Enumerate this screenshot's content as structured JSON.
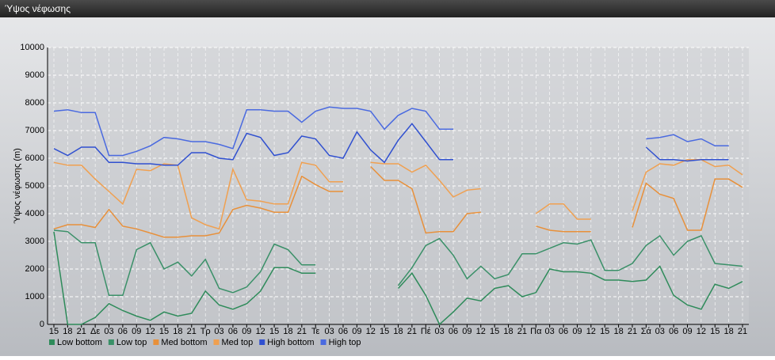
{
  "window_title": "Ύψος νέφωσης",
  "chart_data": {
    "type": "line",
    "y_label": "Ύψος νέφωσης (m)",
    "categories": [
      "15",
      "18",
      "21",
      "Δε",
      "03",
      "06",
      "09",
      "12",
      "15",
      "18",
      "21",
      "Τρ",
      "03",
      "06",
      "09",
      "12",
      "15",
      "18",
      "21",
      "Τε",
      "03",
      "06",
      "09",
      "12",
      "15",
      "18",
      "21",
      "Πέ",
      "03",
      "06",
      "09",
      "12",
      "15",
      "18",
      "21",
      "Πα",
      "03",
      "06",
      "09",
      "12",
      "15",
      "18",
      "21",
      "Σά",
      "03",
      "06",
      "09",
      "12",
      "15",
      "18",
      "21"
    ],
    "ylim": [
      0,
      10000
    ],
    "yticks": [
      0,
      1000,
      2000,
      3000,
      4000,
      5000,
      6000,
      7000,
      8000,
      9000,
      10000
    ],
    "grid": true,
    "series": [
      {
        "name": "Low bottom",
        "color": "#2e8b5a",
        "values": [
          3350,
          0,
          0,
          250,
          750,
          500,
          300,
          150,
          450,
          300,
          400,
          1200,
          700,
          550,
          750,
          1200,
          2050,
          2050,
          1850,
          1850,
          null,
          null,
          null,
          null,
          null,
          1300,
          1850,
          1050,
          0,
          450,
          950,
          850,
          1300,
          1400,
          1000,
          1150,
          2000,
          1900,
          1900,
          1850,
          1600,
          1600,
          1550,
          1600,
          2100,
          1050,
          700,
          550,
          1450,
          1300,
          1550
        ]
      },
      {
        "name": "Low top",
        "color": "#3a9068",
        "values": [
          3400,
          3350,
          2950,
          2950,
          1050,
          1050,
          2700,
          2950,
          2000,
          2250,
          1750,
          2350,
          1300,
          1150,
          1350,
          1900,
          2900,
          2700,
          2150,
          2150,
          null,
          null,
          null,
          null,
          null,
          1400,
          2050,
          2850,
          3100,
          2500,
          1650,
          2100,
          1650,
          1800,
          2550,
          2550,
          2750,
          2950,
          2900,
          3050,
          1950,
          1950,
          2200,
          2850,
          3200,
          2500,
          3000,
          3200,
          2200,
          2150,
          2100
        ]
      },
      {
        "name": "Med bottom",
        "color": "#e8903a",
        "values": [
          3450,
          3600,
          3600,
          3500,
          4150,
          3550,
          3450,
          3300,
          3150,
          3150,
          3200,
          3200,
          3300,
          4150,
          4300,
          4200,
          4050,
          4050,
          5350,
          5050,
          4800,
          4800,
          null,
          5700,
          5200,
          5200,
          4900,
          3300,
          3350,
          3350,
          4000,
          4050,
          null,
          null,
          null,
          3550,
          3400,
          3350,
          3350,
          3350,
          null,
          null,
          3500,
          5100,
          4700,
          4550,
          3400,
          3400,
          5250,
          5250,
          4950
        ]
      },
      {
        "name": "Med top",
        "color": "#f0a050",
        "values": [
          5850,
          5750,
          5750,
          5250,
          4800,
          4350,
          5600,
          5550,
          5800,
          5750,
          3850,
          3600,
          3450,
          5600,
          4500,
          4450,
          4350,
          4350,
          5850,
          5750,
          5150,
          5150,
          null,
          5850,
          5800,
          5800,
          5500,
          5750,
          5200,
          4600,
          4850,
          4900,
          null,
          null,
          null,
          4000,
          4350,
          4350,
          3800,
          3800,
          null,
          null,
          4100,
          5500,
          5800,
          5750,
          5950,
          5950,
          5700,
          5750,
          5400
        ]
      },
      {
        "name": "High bottom",
        "color": "#3050d0",
        "values": [
          6350,
          6100,
          6400,
          6400,
          5850,
          5850,
          5800,
          5800,
          5750,
          5750,
          6200,
          6200,
          6000,
          5950,
          6900,
          6750,
          6100,
          6200,
          6800,
          6700,
          6100,
          6000,
          6950,
          6300,
          5850,
          6650,
          7250,
          6600,
          5950,
          5950,
          null,
          null,
          null,
          null,
          null,
          null,
          null,
          null,
          null,
          null,
          null,
          null,
          null,
          6400,
          5950,
          5950,
          5900,
          5950,
          5950,
          5950,
          null
        ]
      },
      {
        "name": "High top",
        "color": "#4a6ae0",
        "values": [
          7700,
          7750,
          7650,
          7650,
          6100,
          6100,
          6250,
          6450,
          6750,
          6700,
          6600,
          6600,
          6500,
          6350,
          7750,
          7750,
          7700,
          7700,
          7300,
          7700,
          7850,
          7800,
          7800,
          7700,
          7050,
          7550,
          7800,
          7700,
          7050,
          7050,
          null,
          null,
          null,
          null,
          null,
          null,
          null,
          null,
          null,
          null,
          null,
          null,
          null,
          6700,
          6750,
          6850,
          6600,
          6700,
          6450,
          6450,
          null
        ]
      }
    ]
  }
}
